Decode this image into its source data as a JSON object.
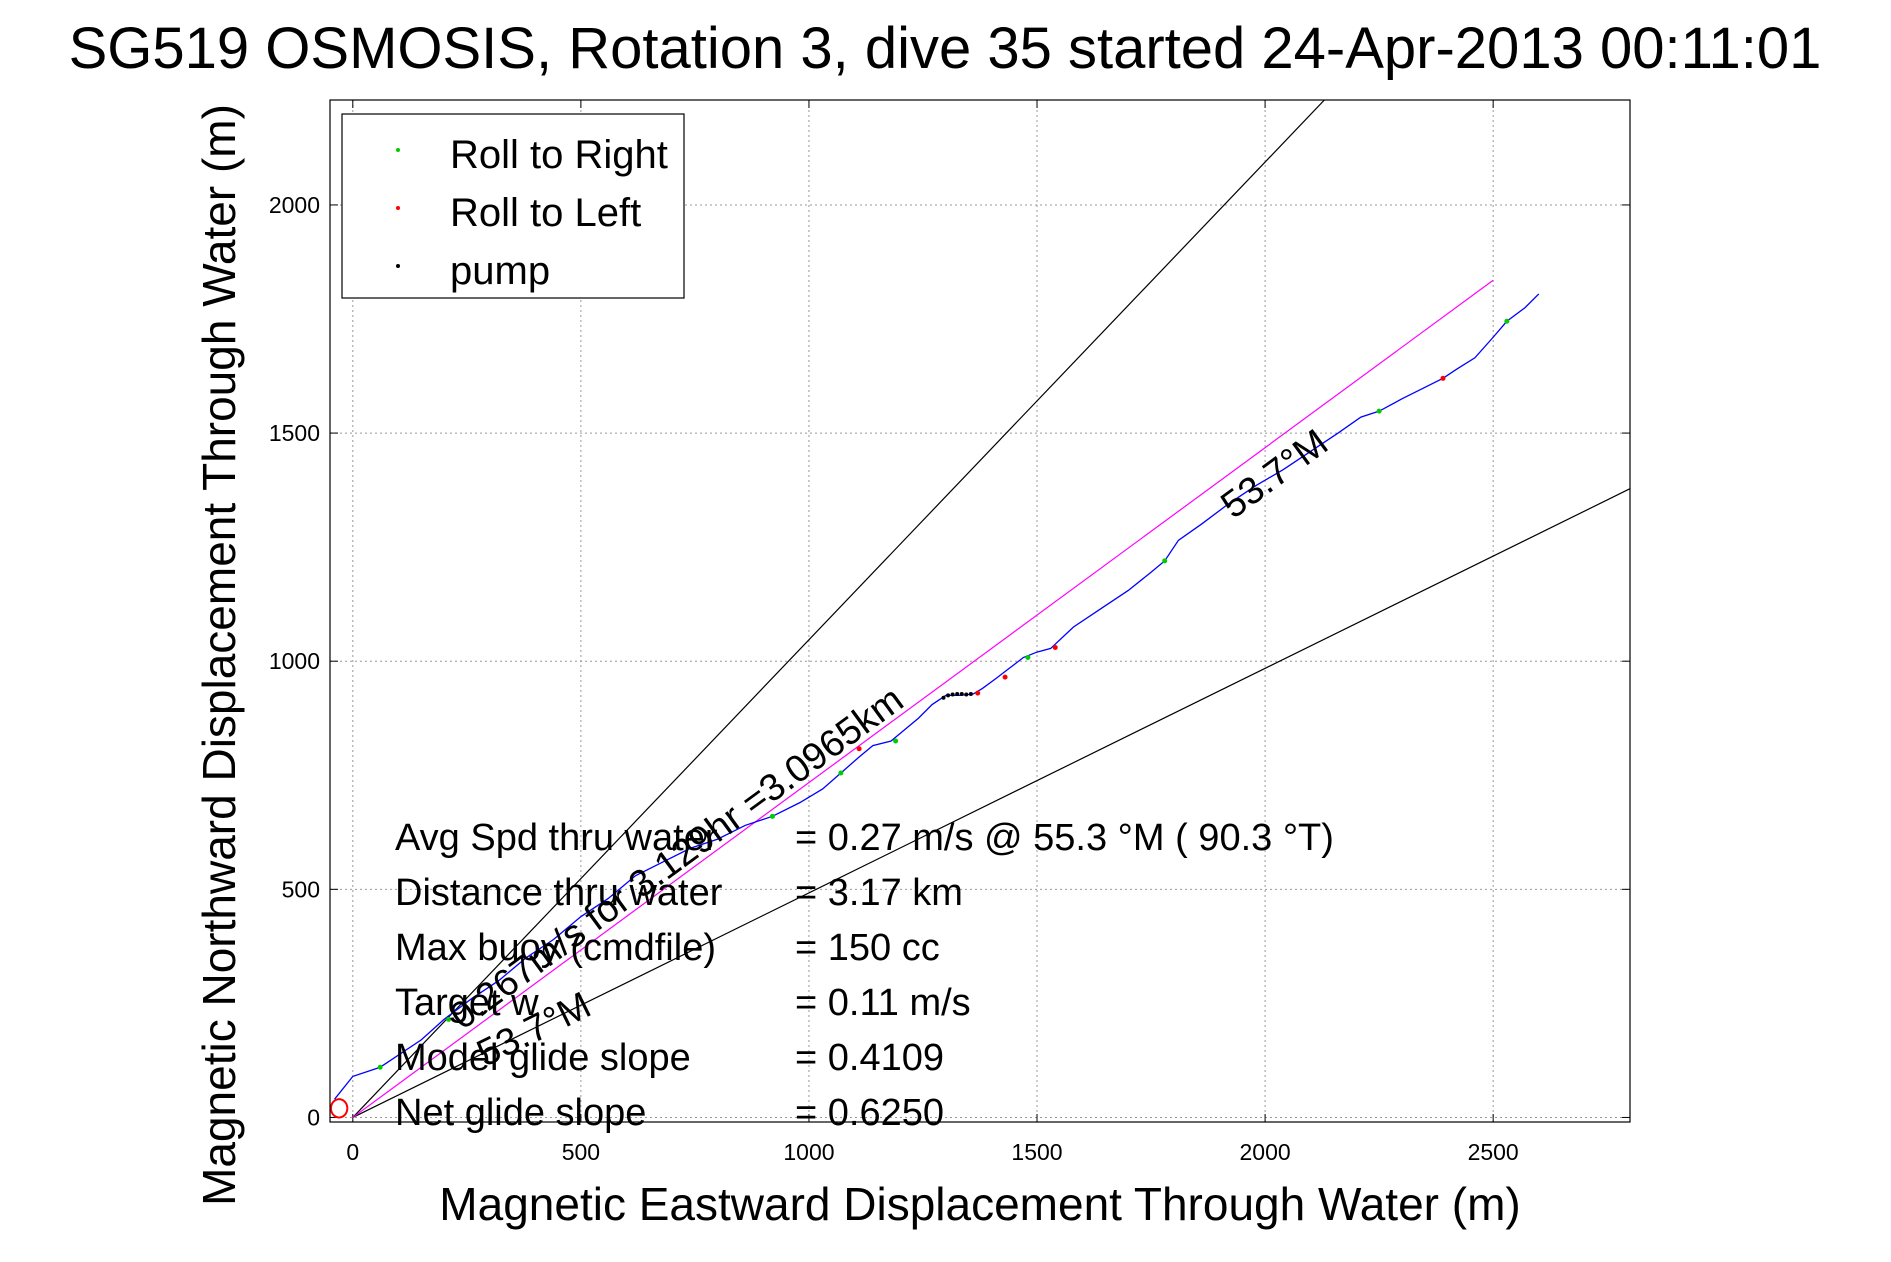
{
  "chart_data": {
    "type": "line",
    "title": "SG519 OSMOSIS, Rotation 3, dive 35 started 24-Apr-2013 00:11:01",
    "xlabel": "Magnetic Eastward Displacement Through Water (m)",
    "ylabel": "Magnetic Northward Displacement Through Water (m)",
    "xlim": [
      -50,
      2800
    ],
    "ylim": [
      -10,
      2230
    ],
    "xticks": [
      0,
      500,
      1000,
      1500,
      2000,
      2500
    ],
    "yticks": [
      0,
      500,
      1000,
      1500,
      2000
    ],
    "grid": true,
    "legend_position": "top-left",
    "legend": [
      {
        "label": "Roll to Right",
        "color": "#00cc00"
      },
      {
        "label": "Roll to Left",
        "color": "#ff0000"
      },
      {
        "label": "pump",
        "color": "#000000"
      }
    ],
    "colors": {
      "track": "#0000ff",
      "course_line": "#ff00ff",
      "bounds": "#000000",
      "loop": "#ff0000"
    },
    "series": [
      {
        "x": [
          -40,
          0,
          60,
          150,
          200,
          260,
          320,
          380,
          440,
          500,
          560,
          620,
          680,
          740,
          800,
          860,
          920,
          980,
          1030,
          1070,
          1110,
          1140,
          1180,
          1210,
          1240,
          1270,
          1300,
          1330,
          1360,
          1380,
          1410,
          1440,
          1470,
          1500,
          1530,
          1580,
          1640,
          1700,
          1750,
          1780,
          1810,
          1860,
          1920,
          1980,
          2040,
          2100,
          2160,
          2210,
          2250,
          2300,
          2350,
          2390,
          2420,
          2460,
          2500,
          2530,
          2570,
          2600
        ],
        "y": [
          40,
          90,
          110,
          170,
          215,
          260,
          300,
          350,
          390,
          440,
          480,
          530,
          560,
          590,
          610,
          640,
          660,
          690,
          720,
          755,
          790,
          815,
          825,
          850,
          875,
          905,
          925,
          925,
          928,
          940,
          962,
          985,
          1008,
          1020,
          1028,
          1075,
          1115,
          1155,
          1195,
          1220,
          1265,
          1300,
          1345,
          1385,
          1420,
          1460,
          1500,
          1535,
          1548,
          1575,
          1600,
          1620,
          1640,
          1665,
          1710,
          1745,
          1775,
          1805
        ]
      },
      {
        "x": [
          0,
          2500
        ],
        "y": [
          0,
          1835
        ]
      }
    ],
    "bound_lines": [
      {
        "x": [
          0,
          2130
        ],
        "y": [
          0,
          2230
        ]
      },
      {
        "x": [
          0,
          2800
        ],
        "y": [
          0,
          1378
        ]
      }
    ],
    "roll_right_points": {
      "x": [
        60,
        210,
        920,
        1070,
        1190,
        1480,
        1780,
        2250,
        2530
      ],
      "y": [
        110,
        215,
        660,
        755,
        825,
        1008,
        1220,
        1548,
        1745
      ]
    },
    "roll_left_points": {
      "x": [
        1110,
        1370,
        1430,
        1540,
        2390
      ],
      "y": [
        808,
        930,
        965,
        1030,
        1620
      ]
    },
    "pump_points": {
      "x": [
        1295,
        1305,
        1315,
        1325,
        1335,
        1345,
        1355
      ],
      "y": [
        920,
        925,
        927,
        928,
        928,
        927,
        928
      ]
    },
    "annotations": {
      "heading_upper": "53.7°M",
      "heading_lower": "53.7°M",
      "course": "0.267m/s for 3.129hr =3.0965km"
    },
    "stats": [
      {
        "label": "Avg Spd thru water",
        "value": "=  0.27 m/s @  55.3 °M ( 90.3 °T)"
      },
      {
        "label": "Distance thru water",
        "value": "=  3.17 km"
      },
      {
        "label": "Max buoy (cmdfile)",
        "value": "= 150 cc"
      },
      {
        "label": "Target w",
        "value": "= 0.11 m/s"
      },
      {
        "label": "Model glide slope",
        "value": "= 0.4109"
      },
      {
        "label": "Net glide slope",
        "value": "= 0.6250"
      }
    ]
  }
}
